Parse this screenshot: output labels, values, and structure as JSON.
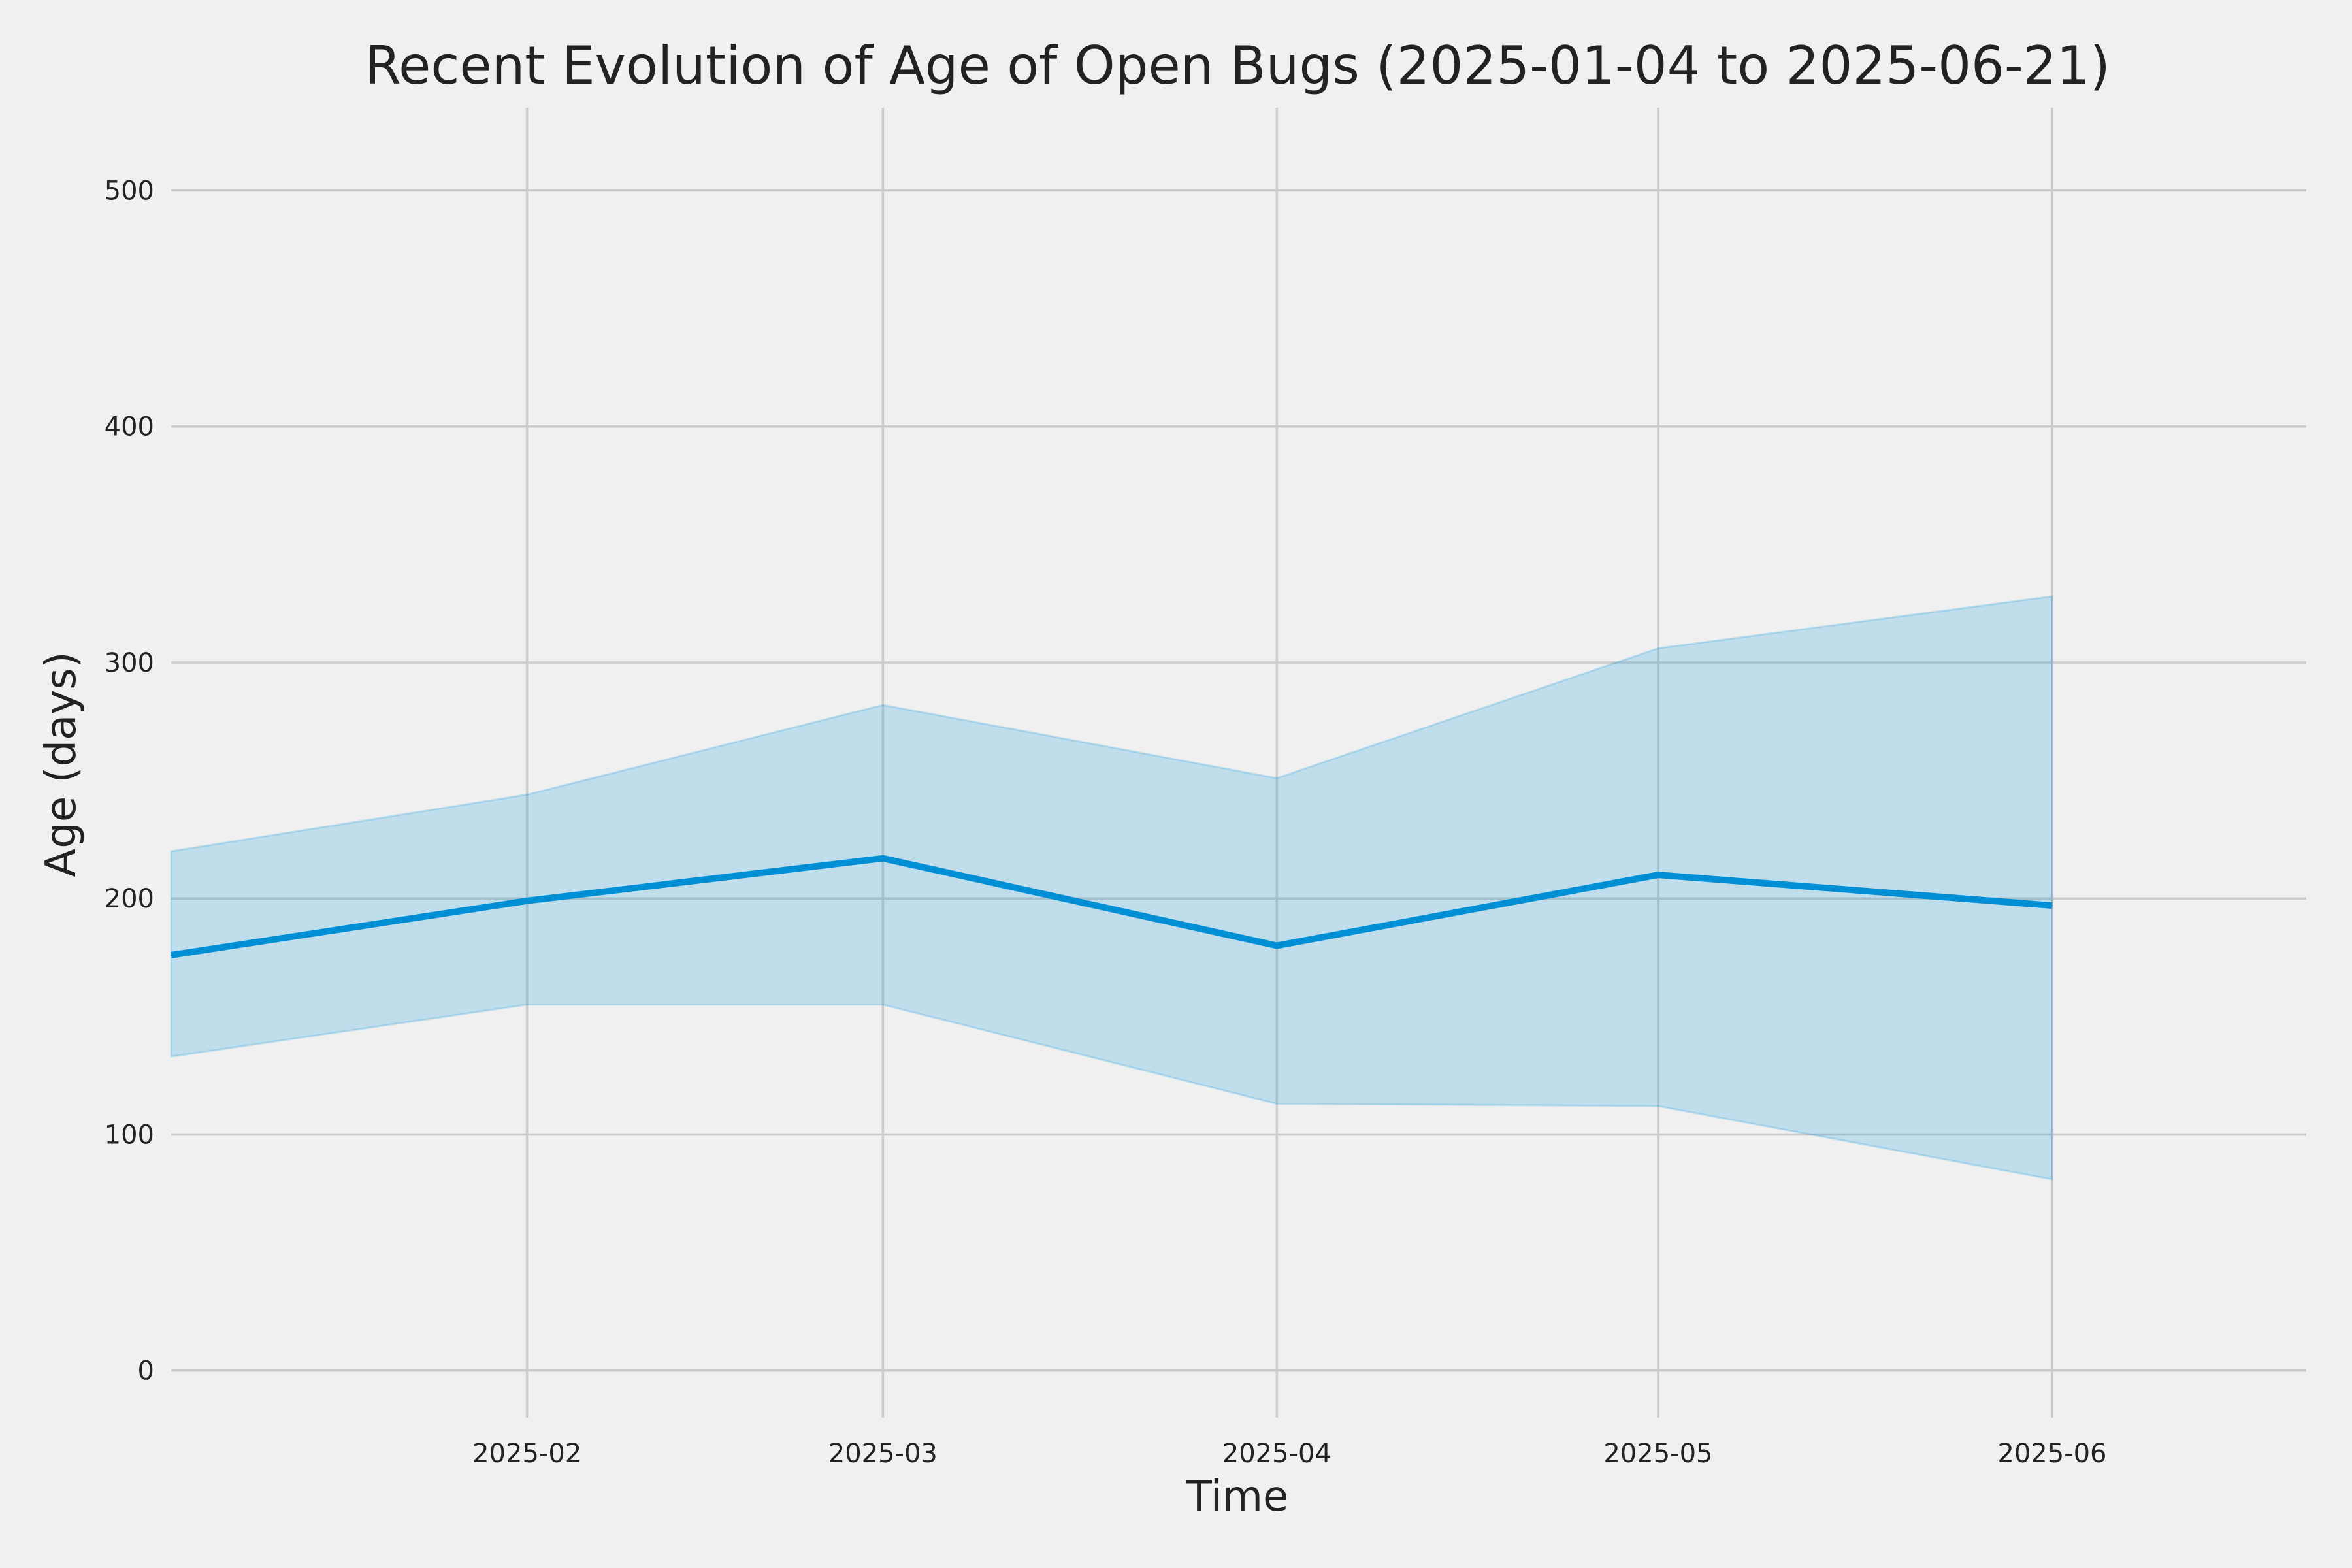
{
  "chart_data": {
    "type": "area",
    "title": "Recent Evolution of Age of Open Bugs (2025-01-04 to 2025-06-21)",
    "xlabel": "Time",
    "ylabel": "Age (days)",
    "x_ticks": [
      "2025-02",
      "2025-03",
      "2025-04",
      "2025-05",
      "2025-06"
    ],
    "y_ticks": [
      0,
      100,
      200,
      300,
      400,
      500
    ],
    "xlim": [
      "2025-01-04",
      "2025-06-21"
    ],
    "ylim": [
      -20,
      535
    ],
    "grid": true,
    "x": [
      "2025-01-04",
      "2025-02-01",
      "2025-03-01",
      "2025-04-01",
      "2025-05-01",
      "2025-06-01"
    ],
    "series": [
      {
        "role": "median",
        "values": [
          176,
          199,
          217,
          180,
          210,
          197
        ],
        "color": "#008fd5"
      }
    ],
    "band": {
      "lower": [
        133,
        155,
        155,
        113,
        112,
        81
      ],
      "upper": [
        220,
        244,
        282,
        251,
        306,
        328
      ],
      "color": "#008fd5",
      "opacity": 0.2
    }
  },
  "colors": {
    "background": "#f0f0f0",
    "grid": "#cbcbcb",
    "text": "#222222"
  }
}
